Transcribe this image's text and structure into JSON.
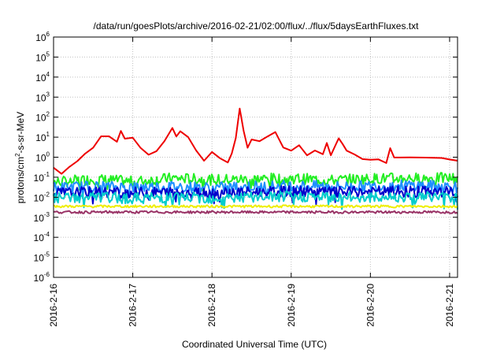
{
  "chart_data": {
    "type": "line",
    "title": "/data/run/goesPlots/archive/2016-02-21/02:00/flux/../flux/5daysEarthFluxes.txt",
    "xlabel": "Coordinated Universal Time (UTC)",
    "ylabel": {
      "pre": "protons/cm",
      "sup": "2",
      "post": "-s-sr-MeV"
    },
    "yscale": "log",
    "ylim_exp": [
      -6,
      6
    ],
    "y_tick_exponents": [
      6,
      5,
      4,
      3,
      2,
      1,
      0,
      -1,
      -2,
      -3,
      -4,
      -5,
      -6
    ],
    "y_tick_base": "10",
    "xlim_days": [
      16.0,
      21.1
    ],
    "x_ticks": [
      {
        "day": 16,
        "label": "2016-2-16"
      },
      {
        "day": 17,
        "label": "2016-2-17"
      },
      {
        "day": 18,
        "label": "2016-2-18"
      },
      {
        "day": 19,
        "label": "2016-2-19"
      },
      {
        "day": 20,
        "label": "2016-2-20"
      },
      {
        "day": 21,
        "label": "2016-2-21"
      }
    ],
    "grid": true,
    "series": [
      {
        "color": "#ee0000",
        "style": "smooth",
        "x": [
          16.0,
          16.1,
          16.2,
          16.3,
          16.4,
          16.5,
          16.6,
          16.7,
          16.8,
          16.85,
          16.9,
          17.0,
          17.1,
          17.2,
          17.3,
          17.4,
          17.5,
          17.55,
          17.6,
          17.7,
          17.8,
          17.9,
          18.0,
          18.1,
          18.2,
          18.25,
          18.3,
          18.35,
          18.4,
          18.45,
          18.5,
          18.6,
          18.7,
          18.8,
          18.9,
          19.0,
          19.1,
          19.2,
          19.3,
          19.4,
          19.45,
          19.5,
          19.6,
          19.65,
          19.7,
          19.8,
          19.9,
          20.0,
          20.1,
          20.2,
          20.25,
          20.3,
          20.5,
          20.7,
          20.9,
          21.0,
          21.1
        ],
        "y": [
          0.3,
          0.15,
          0.3,
          0.6,
          1.5,
          3,
          10,
          12,
          6,
          20,
          8,
          10,
          3,
          1.2,
          2,
          6,
          30,
          10,
          20,
          10,
          2,
          0.6,
          2,
          1,
          0.5,
          1.5,
          10,
          250,
          20,
          3,
          8,
          6,
          10,
          20,
          3,
          2,
          4,
          1.2,
          2,
          1.5,
          5,
          1.2,
          8,
          5,
          2,
          1.5,
          0.8,
          0.7,
          0.8,
          0.5,
          3,
          1.0,
          0.9,
          0.9,
          0.9,
          0.7,
          0.6
        ]
      },
      {
        "color": "#22ee22",
        "style": "noisy",
        "x": [
          16.0,
          16.5,
          17.0,
          17.5,
          18.0,
          18.5,
          19.0,
          19.5,
          20.0,
          20.5,
          21.1
        ],
        "y": [
          0.055,
          0.08,
          0.06,
          0.09,
          0.075,
          0.08,
          0.09,
          0.07,
          0.085,
          0.09,
          0.09
        ]
      },
      {
        "color": "#1e90ff",
        "style": "noisy",
        "x": [
          16.0,
          16.5,
          17.0,
          17.5,
          18.0,
          18.5,
          19.0,
          19.5,
          20.0,
          20.5,
          21.1
        ],
        "y": [
          0.03,
          0.035,
          0.032,
          0.035,
          0.03,
          0.035,
          0.038,
          0.035,
          0.035,
          0.04,
          0.035
        ]
      },
      {
        "color": "#0000cc",
        "style": "noisy",
        "x": [
          16.0,
          16.5,
          17.0,
          17.5,
          18.0,
          18.5,
          19.0,
          19.5,
          20.0,
          20.5,
          21.1
        ],
        "y": [
          0.016,
          0.018,
          0.017,
          0.018,
          0.017,
          0.018,
          0.02,
          0.018,
          0.018,
          0.02,
          0.018
        ]
      },
      {
        "color": "#00cccc",
        "style": "noisy",
        "x": [
          16.0,
          16.5,
          17.0,
          17.5,
          18.0,
          18.5,
          19.0,
          19.5,
          20.0,
          20.5,
          21.1
        ],
        "y": [
          0.009,
          0.01,
          0.009,
          0.01,
          0.009,
          0.01,
          0.011,
          0.01,
          0.01,
          0.011,
          0.01
        ]
      },
      {
        "color": "#eeee00",
        "style": "flat",
        "x": [
          16.0,
          16.5,
          17.0,
          17.5,
          18.0,
          18.5,
          19.0,
          19.5,
          20.0,
          20.5,
          21.1
        ],
        "y": [
          0.0035,
          0.0035,
          0.0035,
          0.0035,
          0.0035,
          0.0035,
          0.0035,
          0.0035,
          0.0035,
          0.0035,
          0.0035
        ]
      },
      {
        "color": "#993366",
        "style": "flat",
        "x": [
          16.0,
          16.5,
          17.0,
          17.5,
          18.0,
          18.5,
          19.0,
          19.5,
          20.0,
          20.5,
          21.1
        ],
        "y": [
          0.0018,
          0.0018,
          0.0018,
          0.0018,
          0.0018,
          0.0018,
          0.0018,
          0.0018,
          0.0018,
          0.0018,
          0.0018
        ]
      }
    ]
  }
}
